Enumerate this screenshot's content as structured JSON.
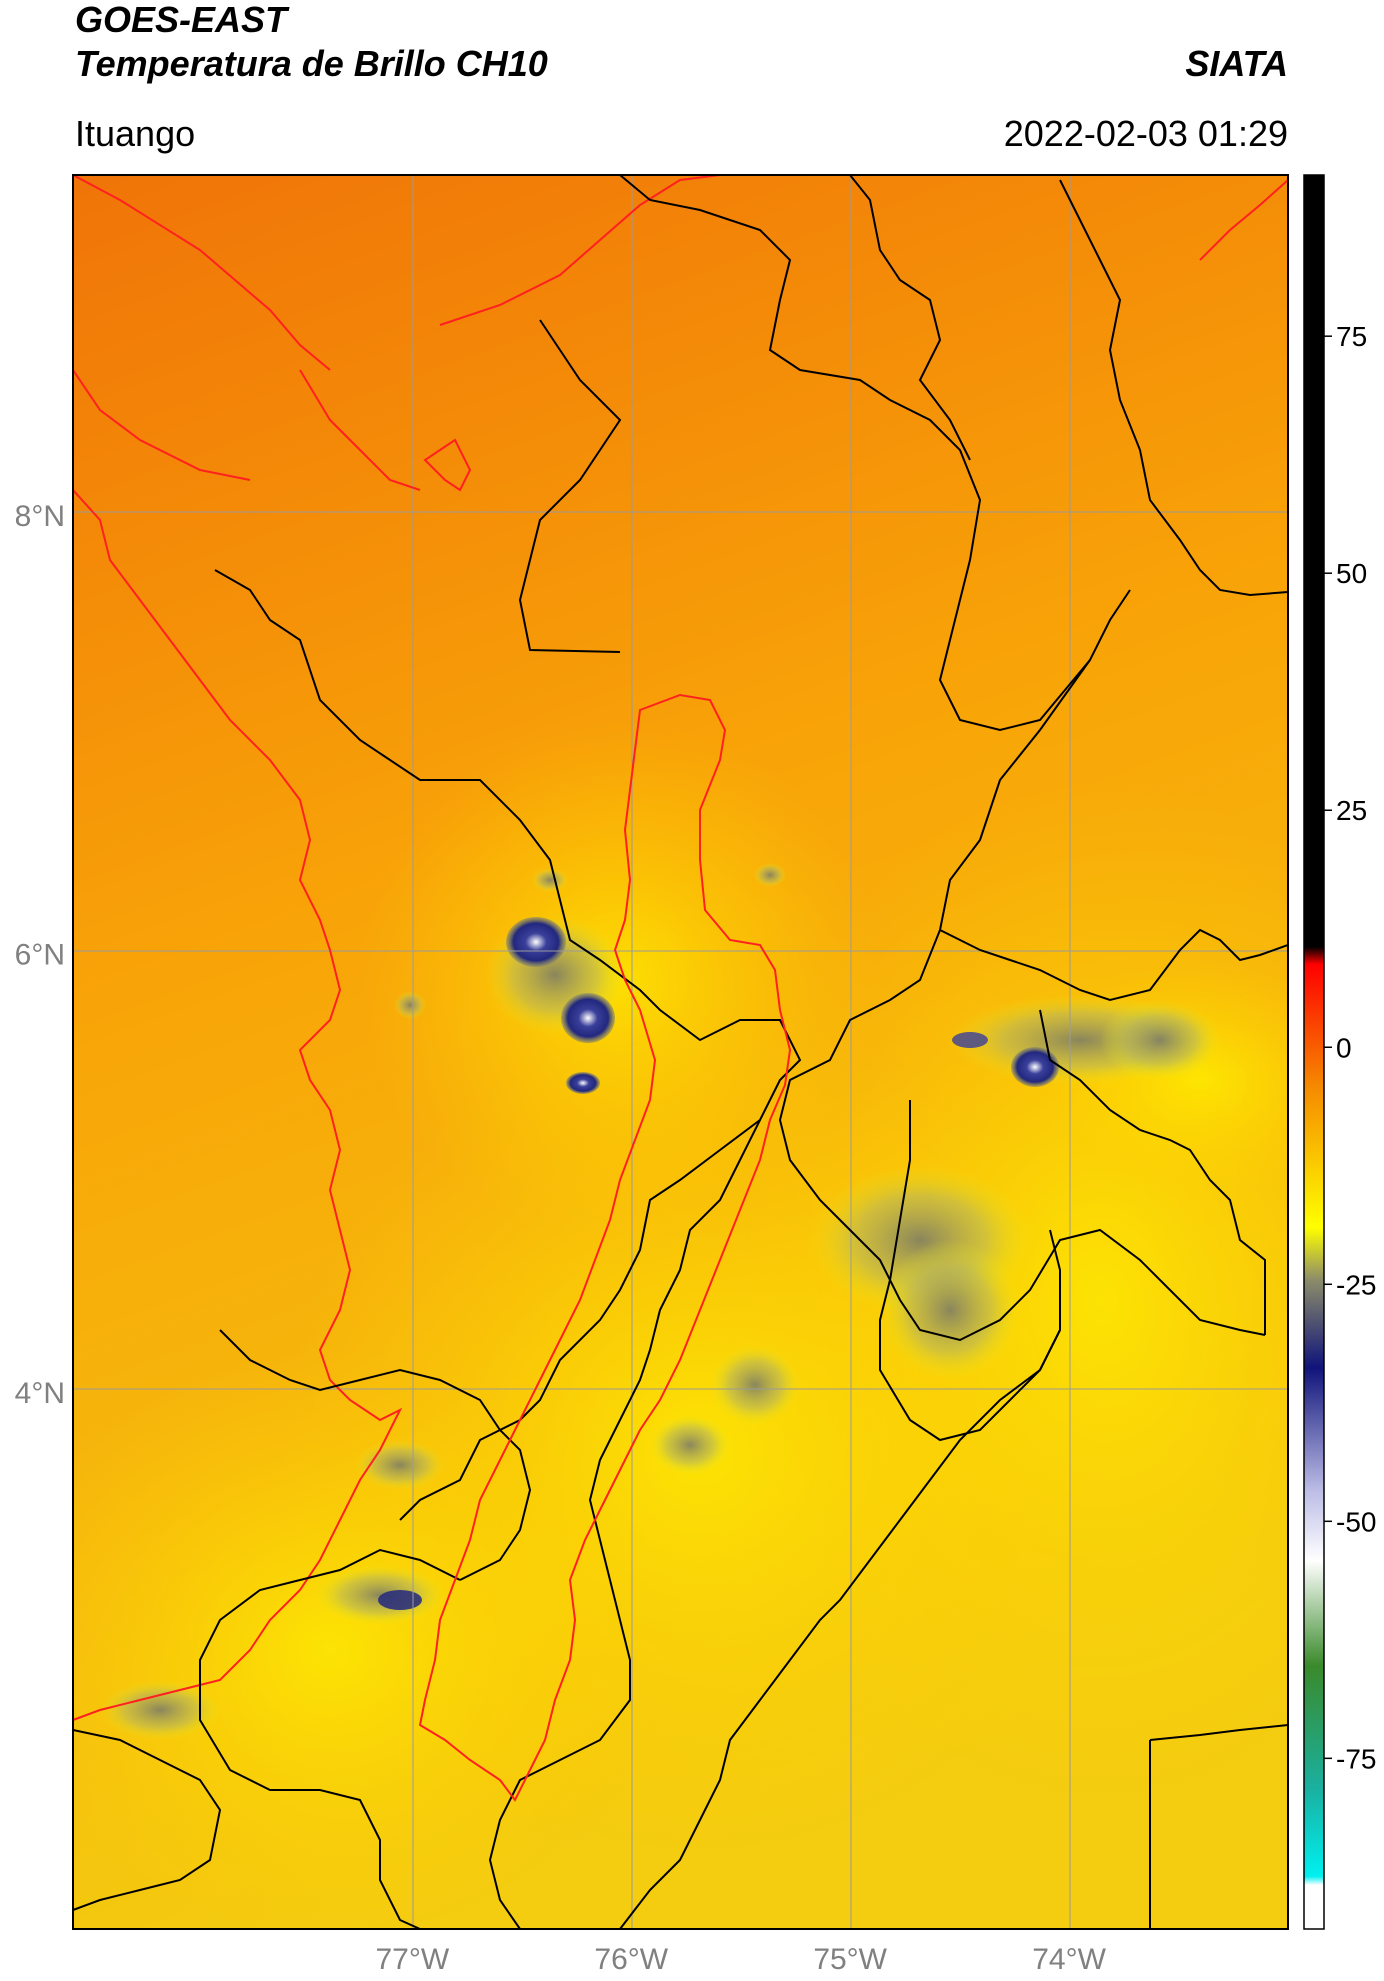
{
  "header": {
    "title_line1": "GOES-EAST",
    "title_line2": "Temperatura de Brillo CH10",
    "organization": "SIATA",
    "location": "Ituango",
    "datetime": "2022-02-03 01:29"
  },
  "map": {
    "lon_range": [
      -78.55,
      -73.0
    ],
    "lat_range": [
      1.55,
      9.55
    ],
    "lon_labels": [
      "77°W",
      "76°W",
      "75°W",
      "74°W"
    ],
    "lat_labels": [
      "8°N",
      "6°N",
      "4°N"
    ],
    "colors": {
      "background_north": "#f07408",
      "background_mid": "#f8a408",
      "background_south": "#f4cc10",
      "country_borders": "#000000",
      "basin_outline": "#ff2020",
      "coastline": "#ff2020",
      "gridlines": "#9a9a9a"
    }
  },
  "colorbar": {
    "ticks": [
      "75",
      "50",
      "25",
      "0",
      "-25",
      "-50",
      "-75"
    ],
    "tick_values": [
      75,
      50,
      25,
      0,
      -25,
      -50,
      -75
    ],
    "vmin": -93,
    "vmax": 92,
    "colors": {
      "hot": "#000000",
      "red": "#ff0000",
      "orange": "#f58a00",
      "yellow": "#ffff00",
      "olive": "#8c8c6a",
      "navy": "#10147a",
      "lavender": "#bcbce6",
      "white": "#ffffff",
      "green": "#3a8a2a",
      "teal": "#1ab0a0",
      "cyan": "#00f0f0"
    }
  }
}
